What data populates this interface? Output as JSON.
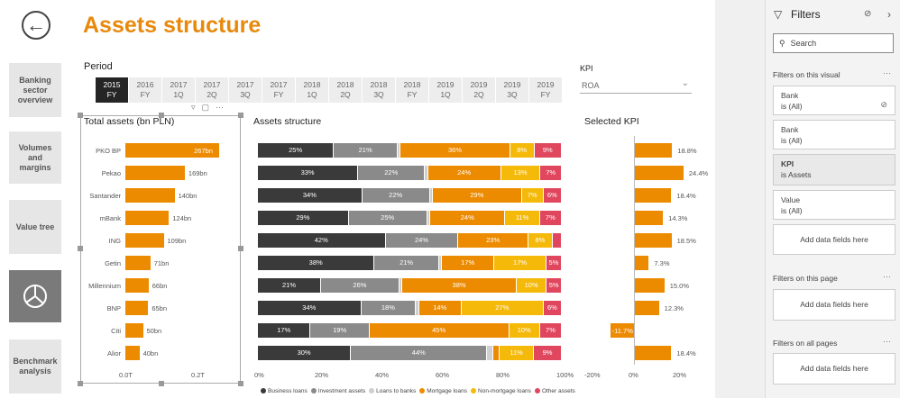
{
  "header": {
    "title": "Assets structure",
    "back_icon": "back-arrow-icon"
  },
  "nav": [
    {
      "label": "Banking sector overview"
    },
    {
      "label": "Volumes and margins"
    },
    {
      "label": "Value tree"
    },
    {
      "label": "",
      "icon": "pie-chart-icon"
    },
    {
      "label": "Benchmark analysis"
    }
  ],
  "period": {
    "label": "Period",
    "options": [
      {
        "year": "2015",
        "q": "FY"
      },
      {
        "year": "2016",
        "q": "FY"
      },
      {
        "year": "2017",
        "q": "1Q"
      },
      {
        "year": "2017",
        "q": "2Q"
      },
      {
        "year": "2017",
        "q": "3Q"
      },
      {
        "year": "2017",
        "q": "FY"
      },
      {
        "year": "2018",
        "q": "1Q"
      },
      {
        "year": "2018",
        "q": "2Q"
      },
      {
        "year": "2018",
        "q": "3Q"
      },
      {
        "year": "2018",
        "q": "FY"
      },
      {
        "year": "2019",
        "q": "1Q"
      },
      {
        "year": "2019",
        "q": "2Q"
      },
      {
        "year": "2019",
        "q": "3Q"
      },
      {
        "year": "2019",
        "q": "FY"
      }
    ],
    "selected": 0
  },
  "kpi": {
    "label": "KPI",
    "value": "ROA"
  },
  "chart_data": [
    {
      "type": "bar",
      "title": "Total assets (bn PLN)",
      "categories": [
        "PKO BP",
        "Pekao",
        "Santander",
        "mBank",
        "ING",
        "Getin",
        "Millennium",
        "BNP",
        "Citi",
        "Alior"
      ],
      "values": [
        267,
        169,
        140,
        124,
        109,
        71,
        66,
        65,
        50,
        40
      ],
      "value_labels": [
        "267bn",
        "169bn",
        "140bn",
        "124bn",
        "109bn",
        "71bn",
        "66bn",
        "65bn",
        "50bn",
        "40bn"
      ],
      "xticks": [
        "0.0T",
        "0.2T"
      ],
      "xlim": [
        0,
        0.3
      ]
    },
    {
      "type": "bar",
      "title": "Assets structure",
      "stacked": true,
      "categories": [
        "PKO BP",
        "Pekao",
        "Santander",
        "mBank",
        "ING",
        "Getin",
        "Millennium",
        "BNP",
        "Citi",
        "Alior"
      ],
      "series": [
        {
          "name": "Business loans",
          "color": "#3a3a3a",
          "values": [
            25,
            33,
            34,
            29,
            42,
            38,
            21,
            34,
            17,
            30
          ]
        },
        {
          "name": "Investment assets",
          "color": "#8a8a8a",
          "values": [
            21,
            22,
            22,
            25,
            24,
            21,
            26,
            18,
            19,
            44
          ]
        },
        {
          "name": "Loans to banks",
          "color": "#cfcfcf",
          "values": [
            1,
            1,
            1,
            1,
            0,
            1,
            1,
            1,
            0,
            2
          ]
        },
        {
          "name": "Mortgage loans",
          "color": "#ED8B00",
          "values": [
            36,
            24,
            29,
            24,
            23,
            17,
            38,
            14,
            45,
            2
          ]
        },
        {
          "name": "Non-mortgage loans",
          "color": "#F5B90A",
          "values": [
            8,
            13,
            7,
            11,
            8,
            17,
            10,
            27,
            10,
            11
          ]
        },
        {
          "name": "Other assets",
          "color": "#E0475E",
          "values": [
            9,
            7,
            6,
            7,
            3,
            5,
            5,
            6,
            7,
            9
          ]
        }
      ],
      "hidden_labels": [
        [
          false,
          false,
          true,
          false,
          false,
          false
        ],
        [
          false,
          false,
          true,
          false,
          false,
          false
        ],
        [
          false,
          false,
          true,
          false,
          false,
          false
        ],
        [
          false,
          false,
          true,
          false,
          false,
          false
        ],
        [
          false,
          false,
          true,
          false,
          false,
          true
        ],
        [
          false,
          false,
          true,
          false,
          false,
          false
        ],
        [
          false,
          false,
          true,
          false,
          false,
          false
        ],
        [
          false,
          false,
          true,
          false,
          false,
          false
        ],
        [
          false,
          false,
          true,
          false,
          false,
          false
        ],
        [
          false,
          false,
          true,
          true,
          false,
          false
        ]
      ],
      "xticks": [
        "0%",
        "20%",
        "40%",
        "60%",
        "80%",
        "100%"
      ]
    },
    {
      "type": "bar",
      "title": "Selected KPI",
      "categories": [
        "PKO BP",
        "Pekao",
        "Santander",
        "mBank",
        "ING",
        "Getin",
        "Millennium",
        "BNP",
        "Citi",
        "Alior"
      ],
      "values": [
        18.8,
        24.4,
        18.4,
        14.3,
        18.5,
        7.3,
        15.0,
        12.3,
        -11.7,
        18.4
      ],
      "value_labels": [
        "18.8%",
        "24.4%",
        "18.4%",
        "14.3%",
        "18.5%",
        "7.3%",
        "15.0%",
        "12.3%",
        "-11.7%",
        "18.4%"
      ],
      "xticks": [
        "-20%",
        "0%",
        "20%"
      ],
      "xlim": [
        -24,
        24
      ]
    }
  ],
  "filters": {
    "title": "Filters",
    "search_placeholder": "Search",
    "on_visual": "Filters on this visual",
    "cards": [
      {
        "name": "Bank",
        "value": "is (All)"
      },
      {
        "name": "Bank",
        "value": "is (All)"
      },
      {
        "name": "KPI",
        "value": "is Assets"
      },
      {
        "name": "Value",
        "value": "is (All)"
      }
    ],
    "add_label": "Add data fields here",
    "on_page": "Filters on this page",
    "on_all": "Filters on all pages"
  }
}
